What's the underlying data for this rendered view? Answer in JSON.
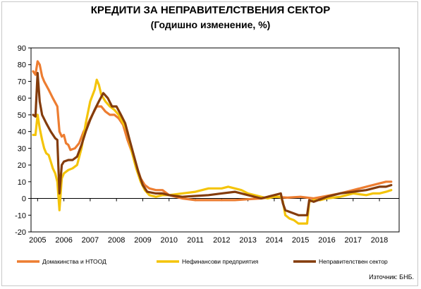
{
  "chart_data": {
    "type": "line",
    "title": "КРЕДИТИ ЗА НЕПРАВИТЕЛСТВЕНИЯ СЕКТОР",
    "subtitle": "(Годишно изменение, %)",
    "source": "Източник: БНБ.",
    "ylim": [
      -20,
      90
    ],
    "yticks": [
      -20,
      -10,
      0,
      10,
      20,
      30,
      40,
      50,
      60,
      70,
      80,
      90
    ],
    "xlim": [
      2004.75,
      2018.75
    ],
    "xticks": [
      {
        "label": "2005",
        "value": 2005.0
      },
      {
        "label": "2006",
        "value": 2006.0
      },
      {
        "label": "2007",
        "value": 2007.0
      },
      {
        "label": "2008",
        "value": 2008.0
      },
      {
        "label": "2009",
        "value": 2009.0
      },
      {
        "label": "2010",
        "value": 2010.0
      },
      {
        "label": "2011",
        "value": 2011.0
      },
      {
        "label": "2012",
        "value": 2012.0
      },
      {
        "label": "2013",
        "value": 2013.0
      },
      {
        "label": "2014",
        "value": 2014.0
      },
      {
        "label": "2015",
        "value": 2015.0
      },
      {
        "label": "2016",
        "value": 2016.0
      },
      {
        "label": "2017",
        "value": 2017.0
      },
      {
        "label": "2018",
        "value": 2018.0
      }
    ],
    "grid": false,
    "legend_position": "bottom",
    "series": [
      {
        "name": "Домакинства и НТООД",
        "color": "#ed7d31",
        "points": [
          [
            2004.83,
            76
          ],
          [
            2004.92,
            74
          ],
          [
            2005.0,
            82
          ],
          [
            2005.08,
            80
          ],
          [
            2005.17,
            73
          ],
          [
            2005.25,
            70
          ],
          [
            2005.42,
            65
          ],
          [
            2005.58,
            60
          ],
          [
            2005.75,
            55
          ],
          [
            2005.83,
            40
          ],
          [
            2005.92,
            37
          ],
          [
            2006.0,
            38
          ],
          [
            2006.08,
            33
          ],
          [
            2006.17,
            32
          ],
          [
            2006.25,
            29
          ],
          [
            2006.42,
            30
          ],
          [
            2006.58,
            33
          ],
          [
            2006.75,
            40
          ],
          [
            2006.92,
            45
          ],
          [
            2007.08,
            50
          ],
          [
            2007.25,
            55
          ],
          [
            2007.42,
            55
          ],
          [
            2007.58,
            52
          ],
          [
            2007.75,
            50
          ],
          [
            2007.92,
            50
          ],
          [
            2008.08,
            48
          ],
          [
            2008.25,
            44
          ],
          [
            2008.42,
            35
          ],
          [
            2008.58,
            28
          ],
          [
            2008.75,
            20
          ],
          [
            2008.92,
            12
          ],
          [
            2009.08,
            8
          ],
          [
            2009.25,
            6
          ],
          [
            2009.5,
            5
          ],
          [
            2009.75,
            5
          ],
          [
            2010.0,
            2
          ],
          [
            2010.5,
            0
          ],
          [
            2011.0,
            -1
          ],
          [
            2011.5,
            -1
          ],
          [
            2012.0,
            -1
          ],
          [
            2012.5,
            -1
          ],
          [
            2013.0,
            -0.5
          ],
          [
            2013.5,
            0
          ],
          [
            2014.0,
            1
          ],
          [
            2014.5,
            0.5
          ],
          [
            2015.0,
            1
          ],
          [
            2015.5,
            0
          ],
          [
            2016.0,
            1.5
          ],
          [
            2016.5,
            3
          ],
          [
            2017.0,
            5
          ],
          [
            2017.5,
            7
          ],
          [
            2017.75,
            8
          ],
          [
            2018.0,
            9
          ],
          [
            2018.25,
            10
          ],
          [
            2018.45,
            10
          ]
        ]
      },
      {
        "name": "Нефинансови предприятия",
        "color": "#f4c40a",
        "points": [
          [
            2004.83,
            38
          ],
          [
            2004.92,
            38
          ],
          [
            2005.0,
            50
          ],
          [
            2005.08,
            42
          ],
          [
            2005.17,
            35
          ],
          [
            2005.25,
            30
          ],
          [
            2005.33,
            27
          ],
          [
            2005.42,
            26
          ],
          [
            2005.5,
            22
          ],
          [
            2005.58,
            18
          ],
          [
            2005.67,
            15
          ],
          [
            2005.75,
            10
          ],
          [
            2005.83,
            -7
          ],
          [
            2005.92,
            12
          ],
          [
            2006.0,
            15
          ],
          [
            2006.17,
            17
          ],
          [
            2006.33,
            18
          ],
          [
            2006.5,
            20
          ],
          [
            2006.67,
            30
          ],
          [
            2006.83,
            45
          ],
          [
            2007.0,
            58
          ],
          [
            2007.17,
            65
          ],
          [
            2007.25,
            71
          ],
          [
            2007.33,
            68
          ],
          [
            2007.42,
            62
          ],
          [
            2007.58,
            58
          ],
          [
            2007.75,
            55
          ],
          [
            2007.92,
            53
          ],
          [
            2008.08,
            50
          ],
          [
            2008.25,
            45
          ],
          [
            2008.42,
            40
          ],
          [
            2008.58,
            28
          ],
          [
            2008.75,
            18
          ],
          [
            2008.92,
            10
          ],
          [
            2009.08,
            5
          ],
          [
            2009.25,
            2
          ],
          [
            2009.5,
            1
          ],
          [
            2009.75,
            2
          ],
          [
            2010.0,
            2
          ],
          [
            2010.5,
            3
          ],
          [
            2011.0,
            4
          ],
          [
            2011.25,
            5
          ],
          [
            2011.5,
            6
          ],
          [
            2012.0,
            6
          ],
          [
            2012.25,
            7
          ],
          [
            2012.5,
            6
          ],
          [
            2012.75,
            5
          ],
          [
            2013.0,
            3
          ],
          [
            2013.25,
            2
          ],
          [
            2013.5,
            1
          ],
          [
            2013.75,
            0
          ],
          [
            2014.0,
            1
          ],
          [
            2014.25,
            1
          ],
          [
            2014.33,
            -2
          ],
          [
            2014.42,
            -10
          ],
          [
            2014.58,
            -12
          ],
          [
            2014.75,
            -13
          ],
          [
            2014.92,
            -15
          ],
          [
            2015.25,
            -15
          ],
          [
            2015.33,
            -2
          ],
          [
            2015.5,
            -1
          ],
          [
            2015.75,
            -1
          ],
          [
            2016.0,
            0
          ],
          [
            2016.5,
            1
          ],
          [
            2017.0,
            3
          ],
          [
            2017.5,
            2
          ],
          [
            2017.75,
            3
          ],
          [
            2018.0,
            3
          ],
          [
            2018.25,
            4
          ],
          [
            2018.45,
            5
          ]
        ]
      },
      {
        "name": "Неправителствен сектор",
        "color": "#843c0c",
        "points": [
          [
            2004.83,
            50
          ],
          [
            2004.92,
            49
          ],
          [
            2005.0,
            75
          ],
          [
            2005.08,
            58
          ],
          [
            2005.17,
            50
          ],
          [
            2005.33,
            45
          ],
          [
            2005.5,
            40
          ],
          [
            2005.67,
            36
          ],
          [
            2005.75,
            35
          ],
          [
            2005.83,
            3
          ],
          [
            2005.92,
            20
          ],
          [
            2006.0,
            22
          ],
          [
            2006.17,
            23
          ],
          [
            2006.33,
            23
          ],
          [
            2006.5,
            25
          ],
          [
            2006.67,
            32
          ],
          [
            2006.83,
            40
          ],
          [
            2007.0,
            47
          ],
          [
            2007.17,
            53
          ],
          [
            2007.33,
            58
          ],
          [
            2007.5,
            63
          ],
          [
            2007.67,
            60
          ],
          [
            2007.83,
            55
          ],
          [
            2008.0,
            55
          ],
          [
            2008.17,
            50
          ],
          [
            2008.33,
            45
          ],
          [
            2008.5,
            35
          ],
          [
            2008.67,
            25
          ],
          [
            2008.83,
            16
          ],
          [
            2009.0,
            8
          ],
          [
            2009.17,
            4
          ],
          [
            2009.5,
            3
          ],
          [
            2009.75,
            3
          ],
          [
            2010.0,
            2
          ],
          [
            2010.5,
            1
          ],
          [
            2011.0,
            1.5
          ],
          [
            2011.5,
            2
          ],
          [
            2012.0,
            3
          ],
          [
            2012.5,
            4
          ],
          [
            2012.75,
            3
          ],
          [
            2013.0,
            2
          ],
          [
            2013.5,
            0
          ],
          [
            2013.75,
            1
          ],
          [
            2014.0,
            2
          ],
          [
            2014.25,
            3
          ],
          [
            2014.33,
            -3
          ],
          [
            2014.42,
            -7
          ],
          [
            2014.58,
            -8
          ],
          [
            2014.75,
            -9
          ],
          [
            2014.92,
            -10
          ],
          [
            2015.25,
            -10
          ],
          [
            2015.33,
            -1
          ],
          [
            2015.5,
            -2
          ],
          [
            2016.0,
            1
          ],
          [
            2016.5,
            3
          ],
          [
            2017.0,
            4
          ],
          [
            2017.5,
            5
          ],
          [
            2017.75,
            6
          ],
          [
            2018.0,
            7
          ],
          [
            2018.25,
            7
          ],
          [
            2018.45,
            8
          ]
        ]
      }
    ]
  }
}
